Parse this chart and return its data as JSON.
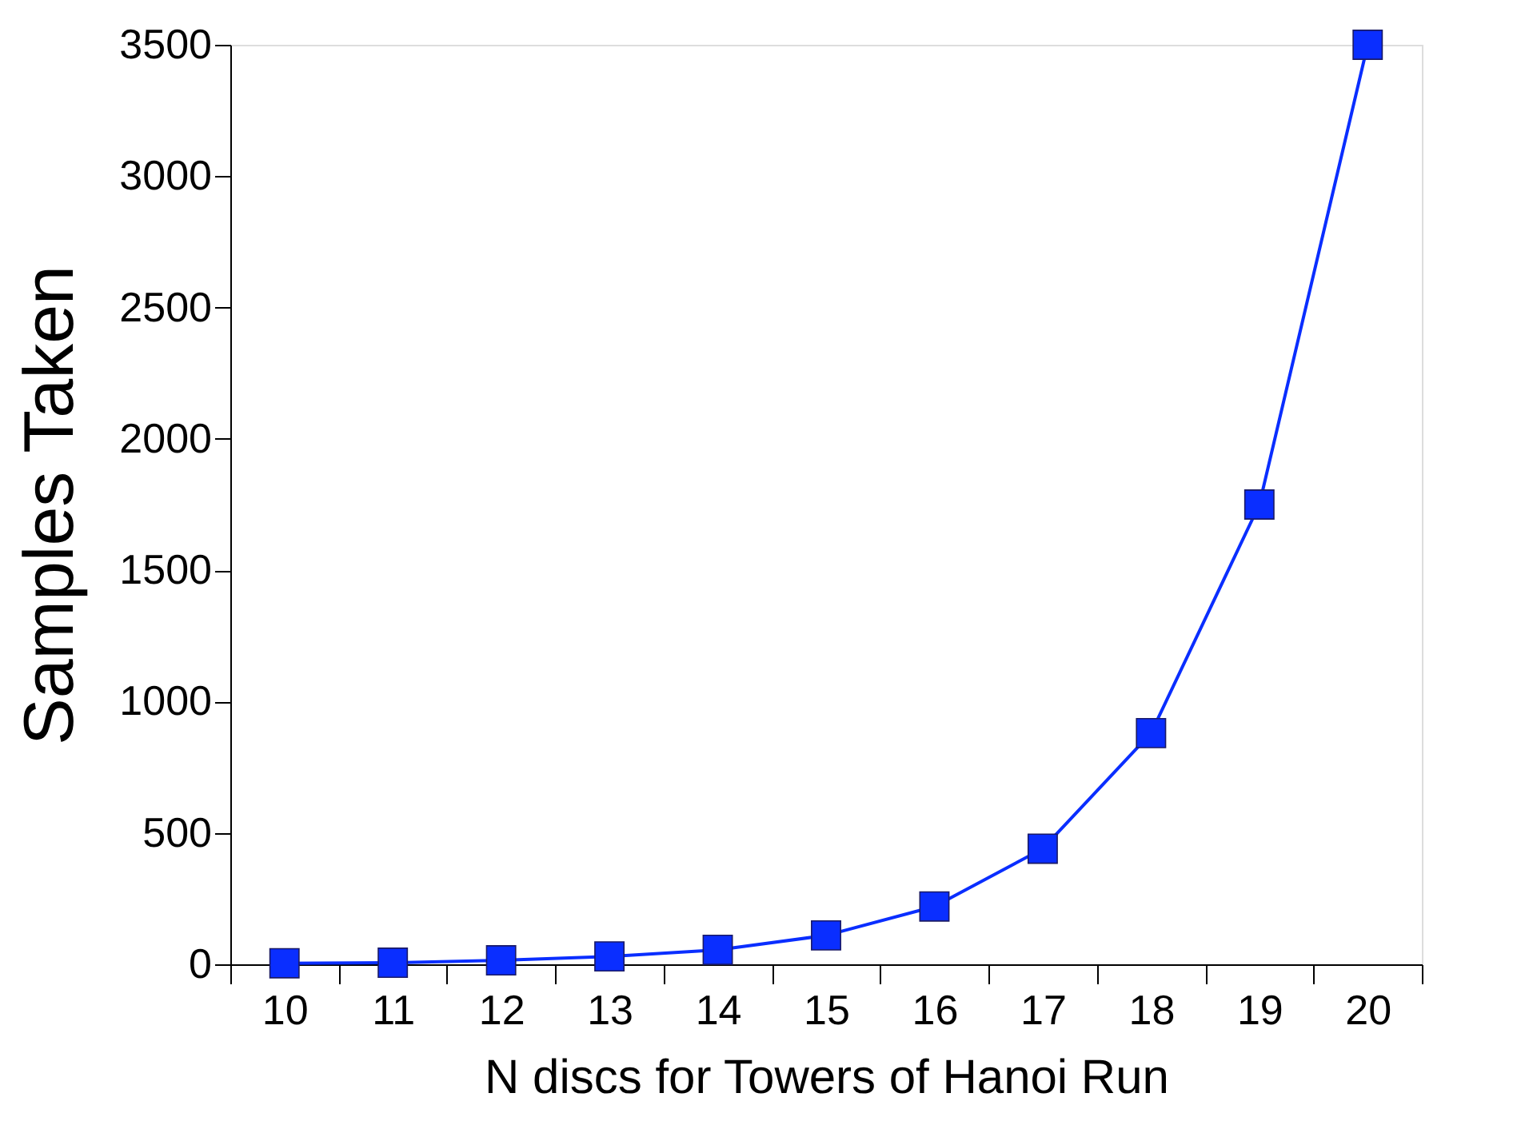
{
  "chart_data": {
    "type": "line",
    "xlabel": "N discs for Towers of Hanoi Run",
    "ylabel": "Samples Taken",
    "categories": [
      "10",
      "11",
      "12",
      "13",
      "14",
      "15",
      "16",
      "17",
      "18",
      "19",
      "20"
    ],
    "series": [
      {
        "color": "#0a2eff",
        "values": [
          4,
          6,
          15,
          30,
          55,
          110,
          220,
          440,
          880,
          1750,
          3500
        ]
      }
    ],
    "ylim": [
      0,
      3500
    ],
    "yticks": [
      0,
      500,
      1000,
      1500,
      2000,
      2500,
      3000,
      3500
    ],
    "marker": "square",
    "line_style": "solid",
    "grid": false
  }
}
